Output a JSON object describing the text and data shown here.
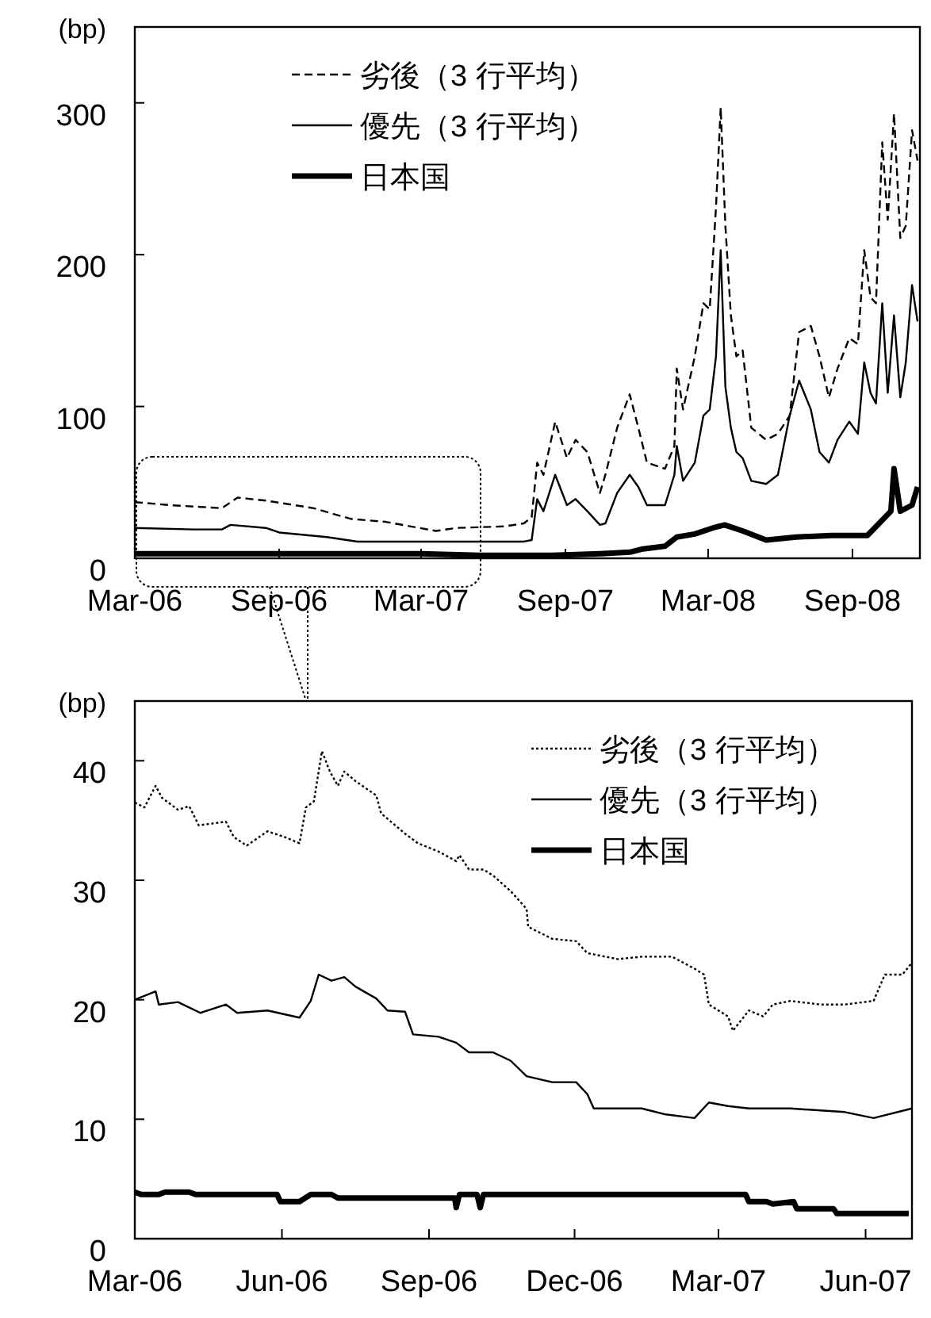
{
  "chart_data": [
    {
      "type": "line",
      "ylabel": "(bp)",
      "xlim": [
        "2006-03-01",
        "2008-11-26"
      ],
      "ylim": [
        0,
        350
      ],
      "yticks": [
        0,
        100,
        200,
        300
      ],
      "xticks": [
        {
          "value": "2006-03-01",
          "label": "Mar-06"
        },
        {
          "value": "2006-09-01",
          "label": "Sep-06"
        },
        {
          "value": "2007-03-01",
          "label": "Mar-07"
        },
        {
          "value": "2007-09-01",
          "label": "Sep-07"
        },
        {
          "value": "2008-03-01",
          "label": "Mar-08"
        },
        {
          "value": "2008-09-01",
          "label": "Sep-08"
        }
      ],
      "legend": "top",
      "grid": false,
      "series": [
        {
          "name": "劣後（3 行平均）",
          "color": "#000000",
          "line_style": "dashed",
          "x": [
            "2006-03-01",
            "2006-04-15",
            "2006-06-20",
            "2006-07-10",
            "2006-08-15",
            "2006-10-15",
            "2006-12-01",
            "2007-01-15",
            "2007-03-20",
            "2007-04-15",
            "2007-06-15",
            "2007-07-10",
            "2007-07-20",
            "2007-07-27",
            "2007-08-04",
            "2007-08-19",
            "2007-09-03",
            "2007-09-14",
            "2007-09-29",
            "2007-10-15",
            "2007-10-22",
            "2007-11-06",
            "2007-11-22",
            "2007-12-03",
            "2007-12-14",
            "2008-01-06",
            "2008-01-18",
            "2008-01-21",
            "2008-01-29",
            "2008-02-13",
            "2008-02-24",
            "2008-03-03",
            "2008-03-11",
            "2008-03-17",
            "2008-03-23",
            "2008-03-30",
            "2008-04-06",
            "2008-04-14",
            "2008-04-25",
            "2008-05-14",
            "2008-05-29",
            "2008-06-13",
            "2008-06-25",
            "2008-07-10",
            "2008-07-21",
            "2008-08-02",
            "2008-08-13",
            "2008-08-28",
            "2008-09-08",
            "2008-09-16",
            "2008-09-24",
            "2008-10-01",
            "2008-10-09",
            "2008-10-16",
            "2008-10-24",
            "2008-11-01",
            "2008-11-08",
            "2008-11-16",
            "2008-11-23"
          ],
          "values": [
            37,
            35,
            33,
            40,
            38,
            33,
            26,
            24,
            18,
            20,
            21,
            23,
            27,
            63,
            55,
            90,
            66,
            78,
            70,
            43,
            55,
            86,
            108,
            86,
            63,
            59,
            74,
            125,
            98,
            133,
            168,
            164,
            231,
            297,
            219,
            160,
            133,
            137,
            86,
            78,
            82,
            94,
            149,
            153,
            133,
            106,
            125,
            145,
            141,
            203,
            172,
            168,
            274,
            223,
            293,
            211,
            219,
            282,
            262
          ]
        },
        {
          "name": "優先（3 行平均）",
          "color": "#000000",
          "line_style": "solid",
          "x": [
            "2006-03-01",
            "2006-05-15",
            "2006-06-20",
            "2006-07-01",
            "2006-08-15",
            "2006-09-01",
            "2006-11-01",
            "2006-12-10",
            "2007-03-01",
            "2007-07-10",
            "2007-07-20",
            "2007-07-27",
            "2007-08-04",
            "2007-08-19",
            "2007-09-03",
            "2007-09-14",
            "2007-09-29",
            "2007-10-15",
            "2007-10-22",
            "2007-11-06",
            "2007-11-22",
            "2007-12-03",
            "2007-12-14",
            "2008-01-06",
            "2008-01-18",
            "2008-01-21",
            "2008-01-29",
            "2008-02-13",
            "2008-02-24",
            "2008-03-03",
            "2008-03-11",
            "2008-03-17",
            "2008-03-23",
            "2008-03-30",
            "2008-04-06",
            "2008-04-14",
            "2008-04-25",
            "2008-05-14",
            "2008-05-29",
            "2008-06-13",
            "2008-06-25",
            "2008-07-10",
            "2008-07-21",
            "2008-08-02",
            "2008-08-13",
            "2008-08-28",
            "2008-09-08",
            "2008-09-16",
            "2008-09-24",
            "2008-10-01",
            "2008-10-09",
            "2008-10-16",
            "2008-10-24",
            "2008-11-01",
            "2008-11-08",
            "2008-11-16",
            "2008-11-23"
          ],
          "values": [
            20,
            19,
            19,
            22,
            20,
            17,
            14,
            11,
            11,
            11,
            12,
            39,
            31,
            55,
            35,
            39,
            31,
            22,
            23,
            43,
            55,
            47,
            35,
            35,
            55,
            74,
            51,
            63,
            94,
            98,
            133,
            203,
            113,
            86,
            70,
            66,
            51,
            49,
            55,
            94,
            117,
            98,
            70,
            63,
            78,
            90,
            82,
            129,
            109,
            102,
            168,
            109,
            160,
            106,
            129,
            180,
            156
          ]
        },
        {
          "name": "日本国",
          "color": "#000000",
          "line_style": "solid",
          "x": [
            "2006-03-01",
            "2007-03-01",
            "2007-05-15",
            "2007-08-15",
            "2007-10-15",
            "2007-11-22",
            "2007-12-07",
            "2008-01-06",
            "2008-01-21",
            "2008-02-13",
            "2008-03-07",
            "2008-03-22",
            "2008-04-14",
            "2008-05-14",
            "2008-06-21",
            "2008-08-05",
            "2008-09-20",
            "2008-10-05",
            "2008-10-20",
            "2008-10-24",
            "2008-11-01",
            "2008-11-16",
            "2008-11-23"
          ],
          "values": [
            3,
            3,
            2,
            2,
            3,
            4,
            6,
            8,
            14,
            16,
            20,
            22,
            18,
            12,
            14,
            15,
            15,
            23,
            31,
            59,
            31,
            35,
            47
          ]
        }
      ]
    },
    {
      "type": "line",
      "ylabel": "(bp)",
      "xlim": [
        "2006-03-01",
        "2007-06-30"
      ],
      "ylim": [
        0,
        45
      ],
      "yticks": [
        0,
        10,
        20,
        30,
        40
      ],
      "xticks": [
        {
          "value": "2006-03-01",
          "label": "Mar-06"
        },
        {
          "value": "2006-06-01",
          "label": "Jun-06"
        },
        {
          "value": "2006-09-01",
          "label": "Sep-06"
        },
        {
          "value": "2006-12-01",
          "label": "Dec-06"
        },
        {
          "value": "2007-03-01",
          "label": "Mar-07"
        },
        {
          "value": "2007-06-01",
          "label": "Jun-07"
        }
      ],
      "legend": "top right",
      "grid": false,
      "series": [
        {
          "name": "劣後（3 行平均）",
          "color": "#000000",
          "line_style": "dotted",
          "x": [
            "2006-03-01",
            "2006-03-07",
            "2006-03-14",
            "2006-03-18",
            "2006-03-28",
            "2006-04-04",
            "2006-04-10",
            "2006-04-27",
            "2006-05-02",
            "2006-05-10",
            "2006-05-23",
            "2006-06-03",
            "2006-06-12",
            "2006-06-16",
            "2006-06-21",
            "2006-06-26",
            "2006-07-01",
            "2006-07-06",
            "2006-07-10",
            "2006-07-17",
            "2006-07-30",
            "2006-08-02",
            "2006-08-17",
            "2006-08-25",
            "2006-09-07",
            "2006-09-18",
            "2006-09-20",
            "2006-09-26",
            "2006-10-05",
            "2006-10-11",
            "2006-10-22",
            "2006-11-01",
            "2006-11-02",
            "2006-11-17",
            "2006-12-02",
            "2006-12-09",
            "2006-12-28",
            "2007-01-12",
            "2007-01-31",
            "2007-02-14",
            "2007-02-20",
            "2007-02-23",
            "2007-03-01",
            "2007-03-07",
            "2007-03-10",
            "2007-03-20",
            "2007-03-29",
            "2007-04-04",
            "2007-04-15",
            "2007-05-04",
            "2007-05-19",
            "2007-06-06",
            "2007-06-13",
            "2007-06-24",
            "2007-06-30"
          ],
          "values": [
            36.5,
            36.1,
            37.9,
            36.9,
            35.9,
            36.2,
            34.6,
            34.9,
            33.6,
            32.9,
            34.1,
            33.6,
            33.1,
            36.1,
            36.6,
            40.8,
            39.1,
            37.9,
            39.1,
            38.3,
            37.1,
            35.6,
            33.9,
            33.1,
            32.4,
            31.6,
            32.1,
            30.9,
            30.9,
            30.4,
            29.1,
            27.6,
            26.1,
            25.1,
            24.9,
            23.9,
            23.4,
            23.6,
            23.6,
            22.6,
            22.1,
            19.6,
            19.1,
            18.6,
            17.4,
            19.1,
            18.6,
            19.6,
            19.9,
            19.6,
            19.6,
            19.9,
            22.1,
            22.1,
            23.1
          ]
        },
        {
          "name": "優先（3 行平均）",
          "color": "#000000",
          "line_style": "solid",
          "x": [
            "2006-03-01",
            "2006-03-14",
            "2006-03-16",
            "2006-03-28",
            "2006-04-11",
            "2006-04-27",
            "2006-05-04",
            "2006-05-23",
            "2006-06-12",
            "2006-06-19",
            "2006-06-24",
            "2006-07-02",
            "2006-07-10",
            "2006-07-17",
            "2006-07-30",
            "2006-08-06",
            "2006-08-17",
            "2006-08-22",
            "2006-09-07",
            "2006-09-18",
            "2006-09-26",
            "2006-10-11",
            "2006-10-22",
            "2006-11-01",
            "2006-11-17",
            "2006-12-02",
            "2006-12-09",
            "2006-12-13",
            "2007-01-12",
            "2007-01-27",
            "2007-02-14",
            "2007-02-23",
            "2007-03-07",
            "2007-03-20",
            "2007-04-15",
            "2007-05-19",
            "2007-06-06",
            "2007-06-30"
          ],
          "values": [
            20.0,
            20.7,
            19.6,
            19.8,
            18.9,
            19.6,
            18.9,
            19.1,
            18.5,
            19.9,
            22.1,
            21.6,
            21.9,
            21.1,
            20.1,
            19.1,
            19.0,
            17.1,
            16.9,
            16.4,
            15.6,
            15.6,
            14.9,
            13.6,
            13.1,
            13.1,
            12.1,
            10.9,
            10.9,
            10.4,
            10.1,
            11.4,
            11.1,
            10.9,
            10.9,
            10.6,
            10.1,
            10.9
          ]
        },
        {
          "name": "日本国",
          "color": "#000000",
          "line_style": "solid",
          "x": [
            "2006-03-01",
            "2006-03-05",
            "2006-03-16",
            "2006-03-20",
            "2006-04-04",
            "2006-04-08",
            "2006-05-29",
            "2006-05-31",
            "2006-06-12",
            "2006-06-19",
            "2006-07-02",
            "2006-07-06",
            "2006-09-17",
            "2006-09-18",
            "2006-09-20",
            "2006-10-01",
            "2006-10-03",
            "2006-10-05",
            "2007-03-18",
            "2007-03-20",
            "2007-03-31",
            "2007-04-04",
            "2007-04-17",
            "2007-04-19",
            "2007-05-12",
            "2007-05-14",
            "2007-06-28"
          ],
          "values": [
            3.9,
            3.7,
            3.7,
            3.9,
            3.9,
            3.7,
            3.7,
            3.1,
            3.1,
            3.7,
            3.7,
            3.4,
            3.4,
            2.6,
            3.7,
            3.7,
            2.6,
            3.7,
            3.7,
            3.1,
            3.1,
            2.9,
            3.1,
            2.5,
            2.5,
            2.1,
            2.1
          ]
        }
      ]
    }
  ]
}
